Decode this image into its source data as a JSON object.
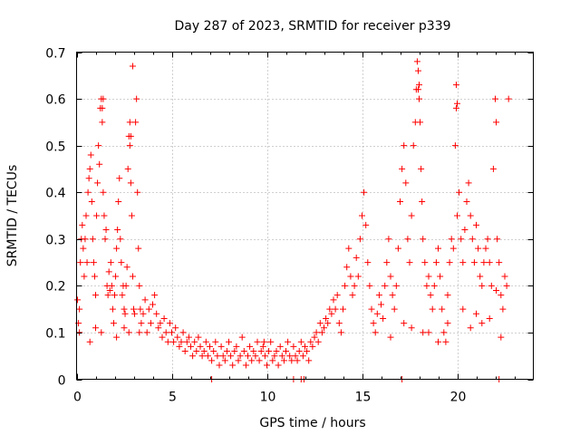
{
  "chart_data": {
    "type": "scatter",
    "title": "Day 287 of 2023, SRMTID for receiver p339",
    "xlabel": "GPS time / hours",
    "ylabel": "SRMTID / TECUs",
    "xlim": [
      0,
      24
    ],
    "ylim": [
      0,
      0.7
    ],
    "xticks": [
      0,
      5,
      10,
      15,
      20
    ],
    "yticks": [
      0,
      0.1,
      0.2,
      0.3,
      0.4,
      0.5,
      0.6,
      0.7
    ],
    "xtick_labels": [
      "0",
      "5",
      "10",
      "15",
      "20"
    ],
    "ytick_labels": [
      "0",
      "0.1",
      "0.2",
      "0.3",
      "0.4",
      "0.5",
      "0.6",
      "0.7"
    ],
    "grid": true,
    "marker": "+",
    "series": [
      {
        "name": "SRMTID",
        "color": "#ff0000",
        "x": [
          0.05,
          0.1,
          0.15,
          0.2,
          0.25,
          0.3,
          0.35,
          0.4,
          0.45,
          0.5,
          0.55,
          0.6,
          0.65,
          0.7,
          0.75,
          0.8,
          0.85,
          0.9,
          0.95,
          1.0,
          1.05,
          1.1,
          1.15,
          1.2,
          1.25,
          1.3,
          1.35,
          1.4,
          1.45,
          1.5,
          1.55,
          1.6,
          1.65,
          1.7,
          1.75,
          1.8,
          1.85,
          1.9,
          1.95,
          2.0,
          2.05,
          2.1,
          2.15,
          2.2,
          2.25,
          2.3,
          2.35,
          2.4,
          2.45,
          2.5,
          2.55,
          2.6,
          2.65,
          2.7,
          2.75,
          2.8,
          2.85,
          2.9,
          2.95,
          3.0,
          3.05,
          3.1,
          3.15,
          3.2,
          3.25,
          3.3,
          3.35,
          3.4,
          3.5,
          3.6,
          3.7,
          3.8,
          3.9,
          4.0,
          4.1,
          4.2,
          4.3,
          4.4,
          4.5,
          4.6,
          4.7,
          4.8,
          4.9,
          5.0,
          5.1,
          5.2,
          5.3,
          5.4,
          5.5,
          5.6,
          5.7,
          5.8,
          5.9,
          6.0,
          6.1,
          6.2,
          6.3,
          6.4,
          6.5,
          6.6,
          6.7,
          6.8,
          6.9,
          7.0,
          7.1,
          7.2,
          7.3,
          7.4,
          7.5,
          7.6,
          7.7,
          7.8,
          7.9,
          8.0,
          8.1,
          8.2,
          8.3,
          8.4,
          8.5,
          8.6,
          8.7,
          8.8,
          8.9,
          9.0,
          9.1,
          9.2,
          9.3,
          9.4,
          9.5,
          9.6,
          9.7,
          9.8,
          9.9,
          10.0,
          10.1,
          10.2,
          10.3,
          10.4,
          10.5,
          10.6,
          10.7,
          10.8,
          10.9,
          11.0,
          11.1,
          11.2,
          11.3,
          11.4,
          11.5,
          11.6,
          11.7,
          11.8,
          11.9,
          12.0,
          12.1,
          12.2,
          12.3,
          12.4,
          12.5,
          12.6,
          12.7,
          12.8,
          12.9,
          13.0,
          13.1,
          13.2,
          13.3,
          13.4,
          13.5,
          13.6,
          13.7,
          13.8,
          13.9,
          14.0,
          14.1,
          14.2,
          14.3,
          14.4,
          14.5,
          14.6,
          14.7,
          14.8,
          14.9,
          15.0,
          15.1,
          15.2,
          15.3,
          15.4,
          15.5,
          15.6,
          15.7,
          15.8,
          15.9,
          16.0,
          16.1,
          16.2,
          16.3,
          16.4,
          16.5,
          16.6,
          16.7,
          16.8,
          16.9,
          17.0,
          17.1,
          17.2,
          17.3,
          17.4,
          17.5,
          17.6,
          17.7,
          17.8,
          17.85,
          17.9,
          17.95,
          18.0,
          18.05,
          18.1,
          18.15,
          18.2,
          18.3,
          18.4,
          18.5,
          18.6,
          18.7,
          18.8,
          18.9,
          19.0,
          19.1,
          19.2,
          19.3,
          19.4,
          19.5,
          19.6,
          19.7,
          19.8,
          19.9,
          19.95,
          20.0,
          20.1,
          20.2,
          20.3,
          20.4,
          20.5,
          20.6,
          20.7,
          20.8,
          20.9,
          21.0,
          21.1,
          21.2,
          21.3,
          21.4,
          21.5,
          21.6,
          21.7,
          21.8,
          21.9,
          22.0,
          22.05,
          22.1,
          22.2,
          22.3,
          22.4,
          22.5,
          22.6,
          22.7,
          1.35,
          1.4,
          2.8,
          2.85,
          2.95,
          17.95,
          18.0,
          19.95,
          20.0,
          22.05,
          9.85,
          0.15,
          0.7,
          1.0,
          1.3,
          2.1,
          2.5,
          2.75,
          3.3,
          16.5,
          17.2,
          17.6,
          18.2,
          18.5,
          19.0,
          19.5,
          20.3,
          20.7,
          21.0,
          21.3,
          21.7,
          22.3,
          7.1,
          11.4,
          11.8,
          11.95,
          17.1,
          22.2
        ],
        "y": [
          0.17,
          0.12,
          0.15,
          0.25,
          0.3,
          0.33,
          0.28,
          0.22,
          0.3,
          0.35,
          0.25,
          0.4,
          0.43,
          0.45,
          0.48,
          0.38,
          0.3,
          0.25,
          0.22,
          0.18,
          0.35,
          0.42,
          0.5,
          0.46,
          0.58,
          0.6,
          0.55,
          0.4,
          0.35,
          0.3,
          0.32,
          0.2,
          0.18,
          0.23,
          0.19,
          0.25,
          0.2,
          0.15,
          0.12,
          0.18,
          0.22,
          0.28,
          0.32,
          0.38,
          0.43,
          0.3,
          0.25,
          0.18,
          0.2,
          0.15,
          0.14,
          0.2,
          0.24,
          0.45,
          0.52,
          0.5,
          0.42,
          0.35,
          0.22,
          0.15,
          0.14,
          0.55,
          0.6,
          0.4,
          0.28,
          0.2,
          0.15,
          0.12,
          0.14,
          0.17,
          0.1,
          0.15,
          0.12,
          0.16,
          0.18,
          0.14,
          0.11,
          0.12,
          0.09,
          0.13,
          0.1,
          0.08,
          0.12,
          0.1,
          0.08,
          0.11,
          0.09,
          0.07,
          0.08,
          0.1,
          0.06,
          0.08,
          0.09,
          0.07,
          0.05,
          0.08,
          0.06,
          0.09,
          0.07,
          0.05,
          0.06,
          0.08,
          0.05,
          0.07,
          0.04,
          0.06,
          0.08,
          0.05,
          0.03,
          0.07,
          0.05,
          0.04,
          0.06,
          0.08,
          0.05,
          0.03,
          0.06,
          0.07,
          0.04,
          0.05,
          0.09,
          0.06,
          0.03,
          0.05,
          0.07,
          0.04,
          0.06,
          0.05,
          0.08,
          0.04,
          0.06,
          0.07,
          0.05,
          0.03,
          0.06,
          0.08,
          0.04,
          0.05,
          0.06,
          0.03,
          0.07,
          0.05,
          0.04,
          0.06,
          0.08,
          0.05,
          0.04,
          0.07,
          0.05,
          0.04,
          0.06,
          0.08,
          0.05,
          0.07,
          0.06,
          0.04,
          0.08,
          0.07,
          0.09,
          0.1,
          0.08,
          0.12,
          0.1,
          0.11,
          0.13,
          0.12,
          0.15,
          0.14,
          0.17,
          0.15,
          0.18,
          0.12,
          0.1,
          0.15,
          0.2,
          0.24,
          0.28,
          0.22,
          0.18,
          0.2,
          0.26,
          0.22,
          0.3,
          0.35,
          0.4,
          0.33,
          0.25,
          0.2,
          0.15,
          0.12,
          0.1,
          0.14,
          0.18,
          0.16,
          0.13,
          0.2,
          0.25,
          0.3,
          0.22,
          0.18,
          0.15,
          0.2,
          0.28,
          0.38,
          0.45,
          0.5,
          0.42,
          0.3,
          0.25,
          0.35,
          0.5,
          0.55,
          0.62,
          0.68,
          0.66,
          0.6,
          0.55,
          0.45,
          0.38,
          0.3,
          0.25,
          0.2,
          0.22,
          0.18,
          0.15,
          0.2,
          0.25,
          0.28,
          0.22,
          0.15,
          0.1,
          0.08,
          0.18,
          0.25,
          0.3,
          0.28,
          0.5,
          0.63,
          0.35,
          0.4,
          0.3,
          0.25,
          0.32,
          0.38,
          0.42,
          0.35,
          0.3,
          0.25,
          0.33,
          0.28,
          0.22,
          0.2,
          0.25,
          0.28,
          0.3,
          0.25,
          0.2,
          0.45,
          0.6,
          0.55,
          0.3,
          0.25,
          0.18,
          0.15,
          0.22,
          0.2,
          0.6,
          0.58,
          0.6,
          0.55,
          0.52,
          0.67,
          0.62,
          0.63,
          0.58,
          0.59,
          0.19,
          0.08,
          0.1,
          0.08,
          0.11,
          0.1,
          0.09,
          0.11,
          0.1,
          0.1,
          0.09,
          0.12,
          0.11,
          0.1,
          0.1,
          0.08,
          0.12,
          0.15,
          0.11,
          0.14,
          0.12,
          0.13,
          0.09,
          0.0,
          0.0,
          0.0,
          0.0,
          0.0,
          0.0
        ]
      }
    ]
  }
}
